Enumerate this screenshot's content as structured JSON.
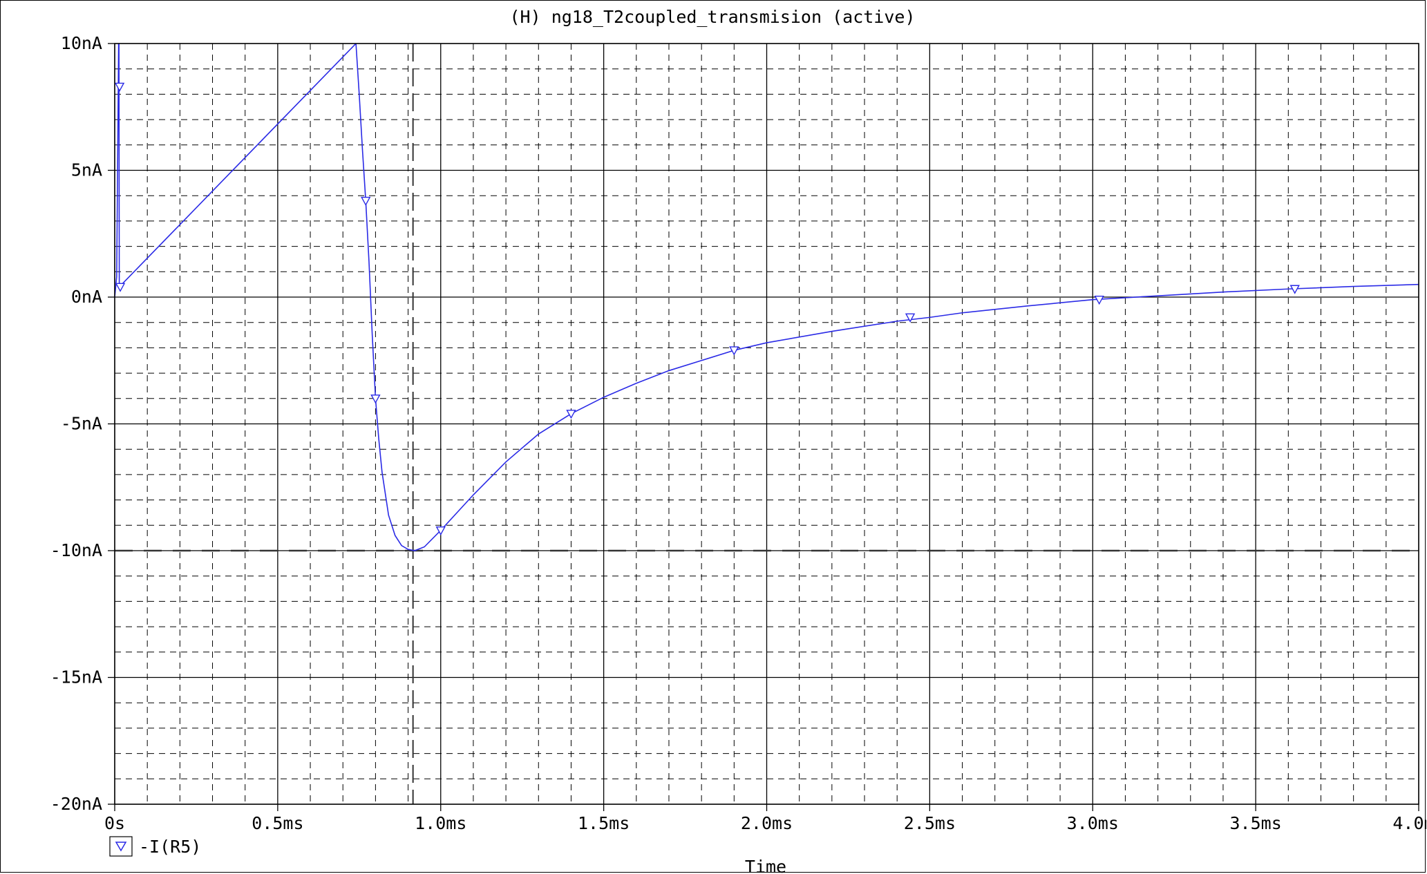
{
  "window": {
    "title": "(H) ng18_T2coupled_transmision (active)"
  },
  "colors": {
    "trace": "#2a2ae6",
    "grid": "#000000",
    "background": "#ffffff",
    "text": "#000000"
  },
  "chart_data": {
    "type": "line",
    "title": "(H) ng18_T2coupled_transmision (active)",
    "xlabel": "Time",
    "ylabel": "",
    "xlim": [
      0,
      0.004
    ],
    "ylim": [
      -2e-08,
      1e-08
    ],
    "xticks": [
      {
        "value": 0,
        "label": "0s"
      },
      {
        "value": 0.0005,
        "label": "0.5ms"
      },
      {
        "value": 0.001,
        "label": "1.0ms"
      },
      {
        "value": 0.0015,
        "label": "1.5ms"
      },
      {
        "value": 0.002,
        "label": "2.0ms"
      },
      {
        "value": 0.0025,
        "label": "2.5ms"
      },
      {
        "value": 0.003,
        "label": "3.0ms"
      },
      {
        "value": 0.0035,
        "label": "3.5ms"
      },
      {
        "value": 0.004,
        "label": "4.0ms"
      }
    ],
    "yticks": [
      {
        "value": 1e-08,
        "label": "10nA"
      },
      {
        "value": 5e-09,
        "label": "5nA"
      },
      {
        "value": 0,
        "label": "0nA"
      },
      {
        "value": -5e-09,
        "label": "-5nA"
      },
      {
        "value": -1e-08,
        "label": "-10nA"
      },
      {
        "value": -1.5e-08,
        "label": "-15nA"
      },
      {
        "value": -2e-08,
        "label": "-20nA"
      }
    ],
    "grid": "major solid, minor dashed",
    "cursor": {
      "x": 0.000915,
      "y": -1e-08
    },
    "legend_position": "bottom-left",
    "series": [
      {
        "name": "-I(R5)",
        "marker": "triangle-down",
        "points": [
          [
            0,
            0
          ],
          [
            6e-06,
            8e-10
          ],
          [
            1.2e-05,
            1e-08
          ],
          [
            1.3e-05,
            1e-08
          ],
          [
            1.4e-05,
            4e-10
          ],
          [
            0.00074,
            1e-08
          ],
          [
            0.00075,
            8e-09
          ],
          [
            0.00076,
            5.8e-09
          ],
          [
            0.00077,
            3.8e-09
          ],
          [
            0.00078,
            1.4e-09
          ],
          [
            0.00079,
            -1.5e-09
          ],
          [
            0.0008,
            -4e-09
          ],
          [
            0.00081,
            -5.6e-09
          ],
          [
            0.00082,
            -6.9e-09
          ],
          [
            0.00084,
            -8.6e-09
          ],
          [
            0.00086,
            -9.4e-09
          ],
          [
            0.00088,
            -9.8e-09
          ],
          [
            0.0009,
            -9.95e-09
          ],
          [
            0.00092,
            -1e-08
          ],
          [
            0.00095,
            -9.85e-09
          ],
          [
            0.001,
            -9.2e-09
          ],
          [
            0.0011,
            -7.8e-09
          ],
          [
            0.0012,
            -6.5e-09
          ],
          [
            0.0013,
            -5.4e-09
          ],
          [
            0.0014,
            -4.6e-09
          ],
          [
            0.0015,
            -3.95e-09
          ],
          [
            0.0016,
            -3.4e-09
          ],
          [
            0.0017,
            -2.9e-09
          ],
          [
            0.0018,
            -2.5e-09
          ],
          [
            0.0019,
            -2.1e-09
          ],
          [
            0.002,
            -1.8e-09
          ],
          [
            0.0022,
            -1.35e-09
          ],
          [
            0.0024,
            -9.5e-10
          ],
          [
            0.0025,
            -8e-10
          ],
          [
            0.0026,
            -6.2e-10
          ],
          [
            0.0028,
            -3.5e-10
          ],
          [
            0.003,
            -1e-10
          ],
          [
            0.0032,
            5e-11
          ],
          [
            0.0034,
            2e-10
          ],
          [
            0.0036,
            3.2e-10
          ],
          [
            0.0038,
            4.2e-10
          ],
          [
            0.004,
            5e-10
          ]
        ],
        "markers_at": [
          [
            1.5e-05,
            8.3e-09
          ],
          [
            1.7e-05,
            4e-10
          ],
          [
            0.00077,
            3.8e-09
          ],
          [
            0.0008,
            -4e-09
          ],
          [
            0.001,
            -9.2e-09
          ],
          [
            0.0014,
            -4.6e-09
          ],
          [
            0.0019,
            -2.1e-09
          ],
          [
            0.00244,
            -8e-10
          ],
          [
            0.00302,
            -1e-10
          ],
          [
            0.00362,
            3.2e-10
          ]
        ]
      }
    ]
  }
}
